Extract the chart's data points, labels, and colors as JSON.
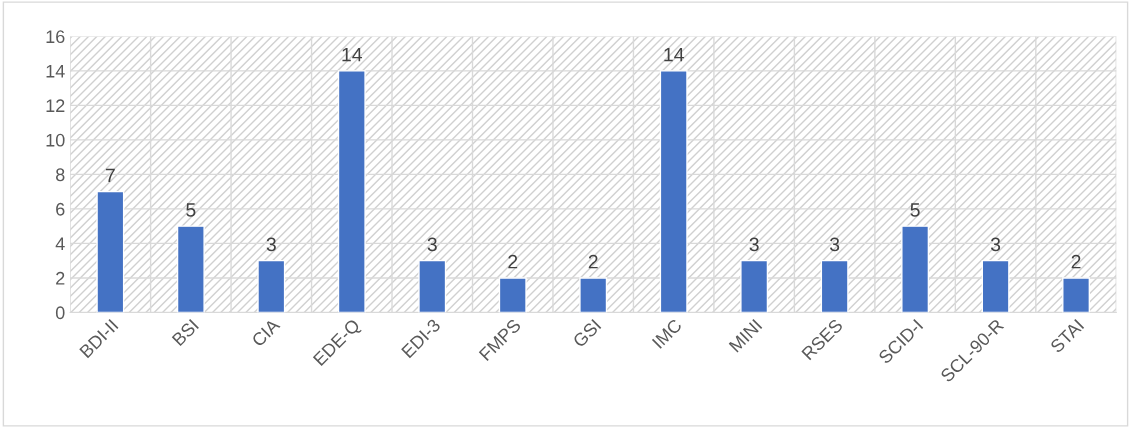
{
  "chart_data": {
    "type": "bar",
    "categories": [
      "BDI-II",
      "BSI",
      "CIA",
      "EDE-Q",
      "EDI-3",
      "FMPS",
      "GSI",
      "IMC",
      "MINI",
      "RSES",
      "SCID-I",
      "SCL-90-R",
      "STAI"
    ],
    "values": [
      7,
      5,
      3,
      14,
      3,
      2,
      2,
      14,
      3,
      3,
      5,
      3,
      2
    ],
    "color": "#4472c4",
    "ylim": [
      0,
      16
    ],
    "yticks": [
      0,
      2,
      4,
      6,
      8,
      10,
      12,
      14,
      16
    ],
    "grid": true,
    "data_labels": true
  }
}
